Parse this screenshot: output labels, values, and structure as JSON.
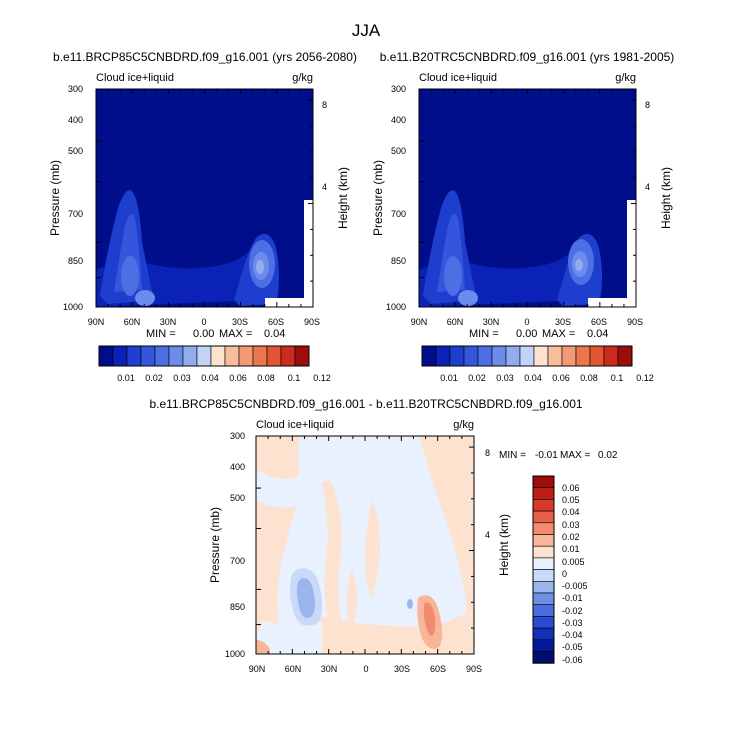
{
  "page_title": "JJA",
  "colors": {
    "seq": [
      "#000e8c",
      "#0a22b6",
      "#1e3ece",
      "#3356dc",
      "#4d6fe4",
      "#6b8cea",
      "#93acf0",
      "#c2d3f8",
      "#fde3cf",
      "#f9bd9c",
      "#f39a75",
      "#ec774f",
      "#e35433",
      "#cb2c1e",
      "#9c0d0b"
    ],
    "div": [
      "#9c0d0b",
      "#bf1d14",
      "#d8392b",
      "#e85e49",
      "#f28c71",
      "#f8b599",
      "#fde3cf",
      "#e8f1fd",
      "#c9daf8",
      "#9ab5ee",
      "#6d90e6",
      "#4a6de0",
      "#2b4bd2",
      "#1530b8",
      "#05179a",
      "#000e70"
    ]
  },
  "chart_data": [
    {
      "type": "heatmap",
      "title": "b.e11.BRCP85C5CNBDRD.f09_g16.001 (yrs 2056-2080)",
      "left_label": "Cloud ice+liquid",
      "right_label": "g/kg",
      "ylabel": "Pressure (mb)",
      "ylabel_right": "Height (km)",
      "x_ticklabels": [
        "90N",
        "60N",
        "30N",
        "0",
        "30S",
        "60S",
        "90S"
      ],
      "x_tickvalues": [
        90,
        60,
        30,
        0,
        -30,
        -60,
        -90
      ],
      "y_ticklabels": [
        "300",
        "400",
        "500",
        "700",
        "850",
        "1000"
      ],
      "y_tickvalues": [
        300,
        400,
        500,
        700,
        850,
        1000
      ],
      "y2_ticklabels": [
        "8",
        "4"
      ],
      "y2_tickvalues": [
        8,
        4
      ],
      "min_label": "MIN =",
      "min_value": "0.00",
      "max_label": "MAX =",
      "max_value": "0.04",
      "colorbar_labels": [
        "0.01",
        "0.02",
        "0.03",
        "0.04",
        "0.06",
        "0.08",
        "0.1",
        "0.12"
      ]
    },
    {
      "type": "heatmap",
      "title": "b.e11.B20TRC5CNBDRD.f09_g16.001 (yrs 1981-2005)",
      "left_label": "Cloud ice+liquid",
      "right_label": "g/kg",
      "ylabel": "Pressure (mb)",
      "ylabel_right": "Height (km)",
      "x_ticklabels": [
        "90N",
        "60N",
        "30N",
        "0",
        "30S",
        "60S",
        "90S"
      ],
      "x_tickvalues": [
        90,
        60,
        30,
        0,
        -30,
        -60,
        -90
      ],
      "y_ticklabels": [
        "300",
        "400",
        "500",
        "700",
        "850",
        "1000"
      ],
      "y_tickvalues": [
        300,
        400,
        500,
        700,
        850,
        1000
      ],
      "y2_ticklabels": [
        "8",
        "4"
      ],
      "y2_tickvalues": [
        8,
        4
      ],
      "min_label": "MIN =",
      "min_value": "0.00",
      "max_label": "MAX =",
      "max_value": "0.04",
      "colorbar_labels": [
        "0.01",
        "0.02",
        "0.03",
        "0.04",
        "0.06",
        "0.08",
        "0.1",
        "0.12"
      ]
    },
    {
      "type": "heatmap",
      "title": "b.e11.BRCP85C5CNBDRD.f09_g16.001 - b.e11.B20TRC5CNBDRD.f09_g16.001",
      "left_label": "Cloud ice+liquid",
      "right_label": "g/kg",
      "ylabel": "Pressure (mb)",
      "ylabel_right": "Height (km)",
      "x_ticklabels": [
        "90N",
        "60N",
        "30N",
        "0",
        "30S",
        "60S",
        "90S"
      ],
      "x_tickvalues": [
        90,
        60,
        30,
        0,
        -30,
        -60,
        -90
      ],
      "y_ticklabels": [
        "300",
        "400",
        "500",
        "700",
        "850",
        "1000"
      ],
      "y_tickvalues": [
        300,
        400,
        500,
        700,
        850,
        1000
      ],
      "y2_ticklabels": [
        "8",
        "4"
      ],
      "y2_tickvalues": [
        8,
        4
      ],
      "min_label": "MIN =",
      "min_value": "-0.01",
      "max_label": "MAX =",
      "max_value": "0.02",
      "colorbar_labels": [
        "0.06",
        "0.05",
        "0.04",
        "0.03",
        "0.02",
        "0.01",
        "0.005",
        "0",
        "-0.005",
        "-0.01",
        "-0.02",
        "-0.03",
        "-0.04",
        "-0.05",
        "-0.06"
      ]
    }
  ]
}
